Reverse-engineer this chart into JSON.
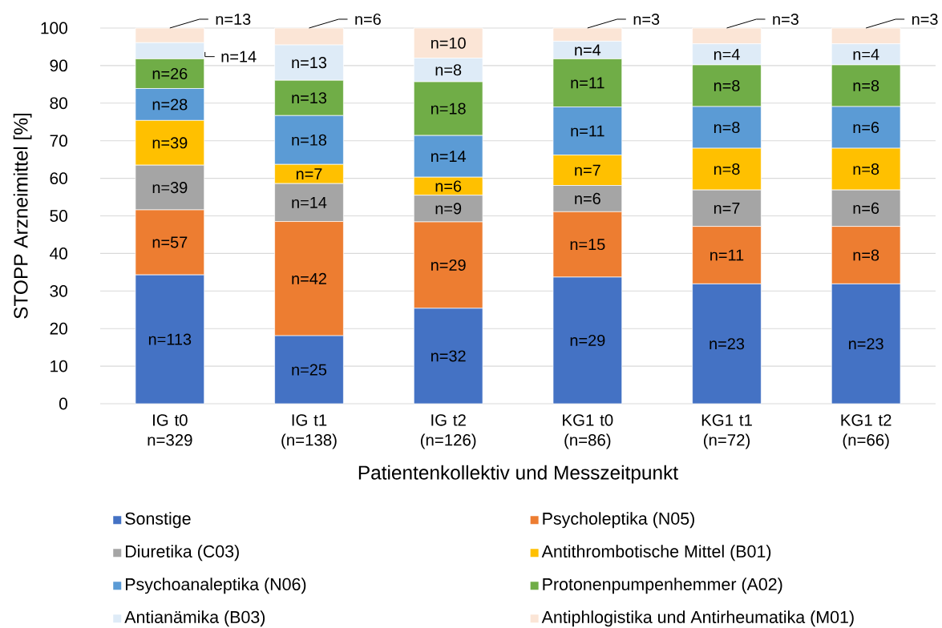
{
  "chart_data": {
    "type": "bar",
    "stacked": true,
    "categories": [
      "IG t0 n=329",
      "IG t1 (n=138)",
      "IG t2 (n=126)",
      "KG1 t0 (n=86)",
      "KG1 t1 (n=72)",
      "KG1 t2 (n=66)"
    ],
    "series": [
      {
        "name": "Sonstige",
        "color": "#4472c4",
        "values": [
          34.3,
          18.1,
          25.4,
          33.7,
          31.9,
          31.9
        ]
      },
      {
        "name": "Psycholeptika (N05)",
        "color": "#ed7d31",
        "values": [
          17.3,
          30.4,
          23.0,
          17.4,
          15.3,
          15.3
        ]
      },
      {
        "name": "Diuretika (C03)",
        "color": "#a5a5a5",
        "values": [
          11.9,
          10.1,
          7.1,
          7.0,
          9.7,
          9.7
        ]
      },
      {
        "name": "Antithrombotische Mittel (B01)",
        "color": "#ffc000",
        "values": [
          11.9,
          5.1,
          4.8,
          8.1,
          11.1,
          11.1
        ]
      },
      {
        "name": "Psychoanaleptika (N06)",
        "color": "#5b9bd5",
        "values": [
          8.5,
          13.0,
          11.1,
          12.8,
          11.1,
          11.1
        ]
      },
      {
        "name": "Protonenpumpenhemmer (A02)",
        "color": "#70ad47",
        "values": [
          7.9,
          9.4,
          14.3,
          12.8,
          11.1,
          11.1
        ]
      },
      {
        "name": "Antianämika (B03)",
        "color": "#deebf7",
        "values": [
          4.3,
          9.4,
          6.3,
          4.7,
          5.6,
          5.6
        ]
      },
      {
        "name": "Antiphlogistika und Antirheumatika (M01)",
        "color": "#fbe5d6",
        "values": [
          3.9,
          4.5,
          8.0,
          3.5,
          4.2,
          4.2
        ]
      }
    ],
    "annotations": [
      "n=113",
      {
        "text": "n=57",
        "x": "IG t0 n=329",
        "y": 51.6
      },
      {
        "text": "n=39",
        "x": "IG t0 n=329",
        "y": 63.5
      },
      {
        "text": "n=39",
        "x": "IG t0 n=329",
        "y": 75.4
      },
      {
        "text": "n=28",
        "x": "IG t0 n=329",
        "y": 83.9
      },
      {
        "text": "n=26",
        "x": "IG t0 n=329",
        "y": 91.8
      },
      "n=14",
      {
        "text": "n=13",
        "x": "IG t0 n=329",
        "y": 100.0
      },
      {
        "text": "n=25",
        "x": "IG t1 (n=138)",
        "y": 18.1
      },
      "n=42",
      {
        "text": "n=14",
        "x": "IG t1 (n=138)",
        "y": 58.6
      },
      {
        "text": "n=7",
        "x": "IG t1 (n=138)",
        "y": 63.7
      },
      {
        "text": "n=18",
        "x": "IG t1 (n=138)",
        "y": 76.7
      },
      {
        "text": "n=13",
        "x": "IG t1 (n=138)",
        "y": 86.1
      },
      {
        "text": "n=13",
        "x": "IG t1 (n=138)",
        "y": 95.5
      },
      {
        "text": "n=6",
        "x": "IG t1 (n=138)",
        "y": 100.0
      },
      {
        "text": "n=32",
        "x": "IG t2 (n=126)",
        "y": 25.4
      },
      {
        "text": "n=29",
        "x": "IG t2 (n=126)",
        "y": 48.4
      },
      {
        "text": "n=9",
        "x": "IG t2 (n=126)",
        "y": 55.5
      },
      {
        "text": "n=6",
        "x": "IG t2 (n=126)",
        "y": 60.3
      },
      {
        "text": "n=14",
        "x": "IG t2 (n=126)",
        "y": 71.4
      },
      {
        "text": "n=18",
        "x": "IG t2 (n=126)",
        "y": 85.7
      },
      {
        "text": "n=8",
        "x": "IG t2 (n=126)",
        "y": 92.0
      },
      {
        "text": "n=10",
        "x": "IG t2 (n=126)",
        "y": 100.0
      },
      "n=29",
      {
        "text": "n=15",
        "x": "KG1 t0 (n=86)",
        "y": 51.1
      },
      {
        "text": "n=6",
        "x": "KG1 t0 (n=86)",
        "y": 58.1
      },
      {
        "text": "n=7",
        "x": "KG1 t0 (n=86)",
        "y": 66.2
      },
      {
        "text": "n=11",
        "x": "KG1 t0 (n=86)",
        "y": 79.0
      },
      {
        "text": "n=11",
        "x": "KG1 t0 (n=86)",
        "y": 91.8
      },
      {
        "text": "n=4",
        "x": "KG1 t0 (n=86)",
        "y": 96.5
      },
      {
        "text": "n=3",
        "x": "KG1 t0 (n=86)",
        "y": 100.0
      },
      "n=23",
      {
        "text": "n=11",
        "x": "KG1 t1 (n=72)",
        "y": 47.2
      },
      {
        "text": "n=7",
        "x": "KG1 t1 (n=72)",
        "y": 56.9
      },
      {
        "text": "n=8",
        "x": "KG1 t1 (n=72)",
        "y": 68.0
      },
      {
        "text": "n=8",
        "x": "KG1 t1 (n=72)",
        "y": 79.1
      },
      {
        "text": "n=8",
        "x": "KG1 t1 (n=72)",
        "y": 90.2
      },
      {
        "text": "n=4",
        "x": "KG1 t1 (n=72)",
        "y": 95.8
      },
      {
        "text": "n=3",
        "x": "KG1 t1 (n=72)",
        "y": 100.0
      },
      "n=23",
      {
        "text": "n=8",
        "x": "KG1 t2 (n=66)",
        "y": 47.2
      },
      {
        "text": "n=6",
        "x": "KG1 t2 (n=66)",
        "y": 56.9
      },
      {
        "text": "n=8",
        "x": "KG1 t2 (n=66)",
        "y": 68.0
      },
      {
        "text": "n=6",
        "x": "KG1 t2 (n=66)",
        "y": 79.1
      },
      {
        "text": "n=8",
        "x": "KG1 t2 (n=66)",
        "y": 90.2
      },
      {
        "text": "n=4",
        "x": "KG1 t2 (n=66)",
        "y": 95.8
      },
      {
        "text": "n=3",
        "x": "KG1 t2 (n=66)",
        "y": 100.0
      }
    ],
    "xlabel": "Patientenkollektiv und Messzeitpunkt",
    "ylabel": "STOPP Arzneimittel [%]",
    "ylim": [
      0,
      100
    ],
    "yticks": [
      0,
      10,
      20,
      30,
      40,
      50,
      60,
      70,
      80,
      90,
      100
    ],
    "grid": "y",
    "legend": "bottom"
  }
}
